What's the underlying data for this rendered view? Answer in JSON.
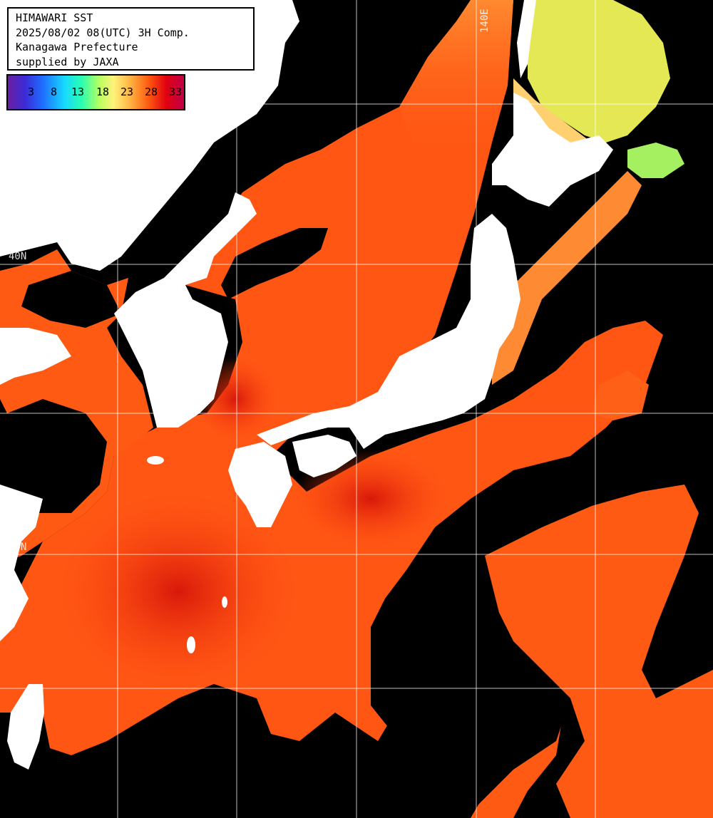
{
  "title": {
    "line1": "HIMAWARI SST",
    "line2": "2025/08/02 08(UTC) 3H Comp.",
    "line3": "Kanagawa Prefecture",
    "line4": "supplied by JAXA"
  },
  "legend": {
    "ticks": [
      "3",
      "8",
      "13",
      "18",
      "23",
      "28",
      "33"
    ],
    "colors": [
      "#6a1fa0",
      "#3b2bd8",
      "#1f6fff",
      "#17d7ff",
      "#2affb0",
      "#b8ff60",
      "#fff27a",
      "#ffb040",
      "#ff5a10",
      "#e00010",
      "#c0004a"
    ]
  },
  "grid_labels": {
    "lat_upper": "40N",
    "lat_lower": "30N",
    "lon": "140E"
  },
  "colors": {
    "land": "#ffffff",
    "cloud_no_data": "#000000",
    "sea_warm": "#ff5a14",
    "sea_hot": "#e42a0c",
    "sea_cool": "#ffa040",
    "sea_cold": "#e6ef60",
    "grid": "#ffffff"
  }
}
